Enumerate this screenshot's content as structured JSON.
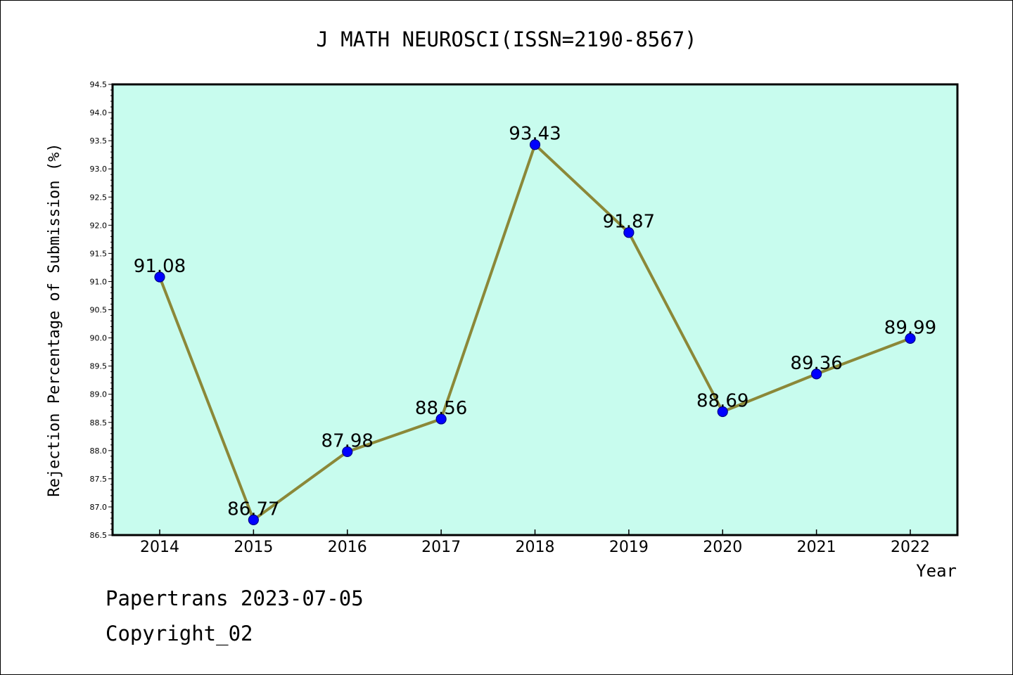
{
  "chart_data": {
    "type": "line",
    "title": "J MATH NEUROSCI(ISSN=2190-8567)",
    "xlabel": "Year",
    "ylabel": "Rejection Percentage of Submission (%)",
    "x": [
      "2014",
      "2015",
      "2016",
      "2017",
      "2018",
      "2019",
      "2020",
      "2021",
      "2022"
    ],
    "y": [
      91.08,
      86.77,
      87.98,
      88.56,
      93.43,
      91.87,
      88.69,
      89.36,
      89.99
    ],
    "data_labels": [
      "91.08",
      "86.77",
      "87.98",
      "88.56",
      "93.43",
      "91.87",
      "88.69",
      "89.36",
      "89.99"
    ],
    "ylim": [
      86.5,
      94.5
    ],
    "yticks": [
      "86.5",
      "87.0",
      "87.5",
      "88.0",
      "88.5",
      "89.0",
      "89.5",
      "90.0",
      "90.5",
      "91.0",
      "91.5",
      "92.0",
      "92.5",
      "93.0",
      "93.5",
      "94.0",
      "94.5"
    ],
    "grid": false,
    "legend": "none",
    "colors": {
      "plot_background": "#c8fcee",
      "line": "#8b8838",
      "marker": "#0000ff",
      "marker_edge": "#00008b"
    }
  },
  "footer": {
    "line1": "Papertrans 2023-07-05",
    "line2": "Copyright_02"
  }
}
